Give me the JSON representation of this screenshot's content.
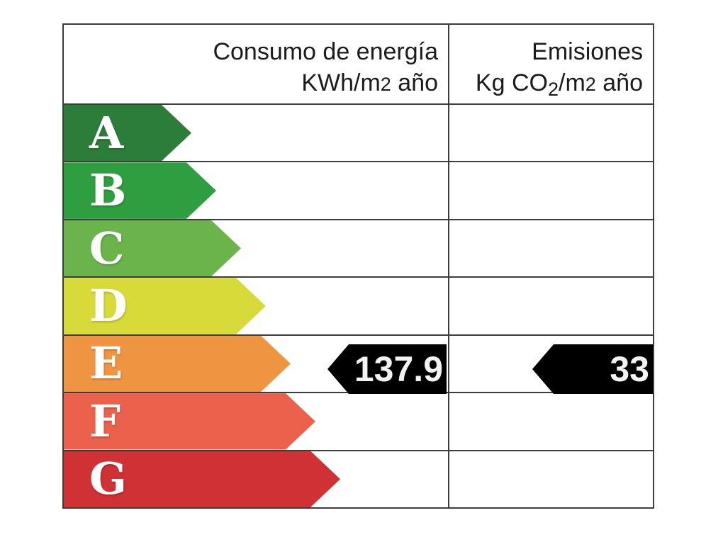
{
  "chart_data": {
    "type": "table",
    "title": "Energy efficiency rating label",
    "columns": [
      "Consumo de energía KWh/m2 año",
      "Emisiones Kg CO2/m2 año"
    ],
    "categories": [
      "A",
      "B",
      "C",
      "D",
      "E",
      "F",
      "G"
    ],
    "band_colors": [
      "#2d7d3a",
      "#2f9e41",
      "#6bb44c",
      "#d8da3a",
      "#ef9440",
      "#eb614b",
      "#cf3134"
    ],
    "indicated_rating": "E",
    "consumption_kwh_m2_year": 137.9,
    "emissions_kg_co2_m2_year": 33
  },
  "header": {
    "consumption": {
      "line1": "Consumo de energía",
      "unit_pre": "KWh/m",
      "unit_sup": "2",
      "unit_post": " año"
    },
    "emissions": {
      "line1": "Emisiones",
      "unit_pre": "Kg CO",
      "unit_sub": "2",
      "unit_mid": "/m",
      "unit_sup": "2",
      "unit_post": " año"
    }
  },
  "ratings": [
    {
      "letter": "A",
      "color": "#2d7d3a"
    },
    {
      "letter": "B",
      "color": "#2f9e41"
    },
    {
      "letter": "C",
      "color": "#6bb44c"
    },
    {
      "letter": "D",
      "color": "#d8da3a"
    },
    {
      "letter": "E",
      "color": "#ef9440"
    },
    {
      "letter": "F",
      "color": "#eb614b"
    },
    {
      "letter": "G",
      "color": "#cf3134"
    }
  ],
  "indicators": {
    "consumption": "137.9",
    "emissions": "33",
    "arrow_color": "#000000",
    "text_color": "#f2f2f2"
  },
  "grid_color": "#3c3c3c"
}
